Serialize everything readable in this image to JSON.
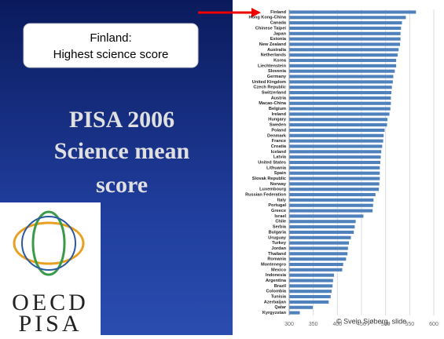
{
  "slide": {
    "callout": [
      "Finland:",
      "Highest science score"
    ],
    "title": [
      "PISA 2006",
      "Science mean",
      "score"
    ],
    "logo": [
      "OECD",
      "PISA"
    ],
    "credit": "© Svein Sjøberg, slide"
  },
  "chart_data": {
    "type": "barh",
    "categories": [
      "Finland",
      "Hong Kong-China",
      "Canada",
      "Chinese Taipei",
      "Japan",
      "Estonia",
      "New Zealand",
      "Australia",
      "Netherlands",
      "Korea",
      "Liechtenstein",
      "Slovenia",
      "Germany",
      "United Kingdom",
      "Czech Republic",
      "Switzerland",
      "Austria",
      "Macao-China",
      "Belgium",
      "Ireland",
      "Hungary",
      "Sweden",
      "Poland",
      "Denmark",
      "France",
      "Croatia",
      "Iceland",
      "Latvia",
      "United States",
      "Lithuania",
      "Spain",
      "Slovak Republic",
      "Norway",
      "Luxembourg",
      "Russian Federation",
      "Italy",
      "Portugal",
      "Greece",
      "Israel",
      "Chile",
      "Serbia",
      "Bulgaria",
      "Uruguay",
      "Turkey",
      "Jordan",
      "Thailand",
      "Romania",
      "Montenegro",
      "Mexico",
      "Indonesia",
      "Argentina",
      "Brazil",
      "Colombia",
      "Tunisia",
      "Azerbaijan",
      "Qatar",
      "Kyrgyzstan"
    ],
    "values": [
      563,
      542,
      534,
      532,
      531,
      531,
      530,
      527,
      525,
      522,
      522,
      519,
      516,
      515,
      513,
      512,
      511,
      511,
      510,
      508,
      504,
      503,
      498,
      496,
      495,
      493,
      491,
      490,
      489,
      488,
      488,
      488,
      487,
      486,
      479,
      475,
      474,
      473,
      454,
      438,
      436,
      434,
      428,
      424,
      422,
      421,
      418,
      412,
      410,
      393,
      391,
      390,
      388,
      386,
      382,
      349,
      322
    ],
    "color": "#4f81bd",
    "xlim": [
      300,
      600
    ],
    "xticks": [
      300,
      350,
      400,
      450,
      500,
      550,
      600
    ],
    "grid": true
  }
}
